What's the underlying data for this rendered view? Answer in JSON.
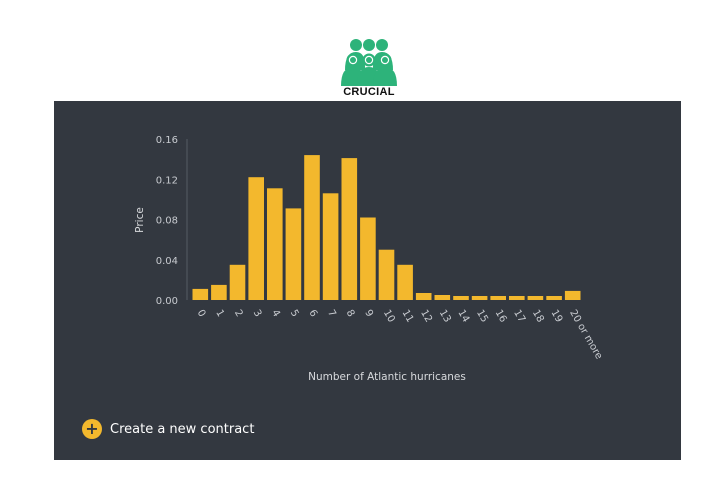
{
  "logo": {
    "text": "CRUCIAL",
    "icon": "people-group-icon",
    "color": "#2db37a"
  },
  "colors": {
    "panel_background": "#333840",
    "bar": "#f3b82d",
    "accent": "#f3b82d"
  },
  "chart_data": {
    "type": "bar",
    "title": "",
    "xlabel": "Number of Atlantic hurricanes",
    "ylabel": "Price",
    "ylim": [
      0,
      0.16
    ],
    "yticks": [
      "0.00",
      "0.04",
      "0.08",
      "0.12",
      "0.16"
    ],
    "ytick_values": [
      0,
      0.04,
      0.08,
      0.12,
      0.16
    ],
    "grid": false,
    "categories": [
      "0",
      "1",
      "2",
      "3",
      "4",
      "5",
      "6",
      "7",
      "8",
      "9",
      "10",
      "11",
      "12",
      "13",
      "14",
      "15",
      "16",
      "17",
      "18",
      "19",
      "20 or more"
    ],
    "values": [
      0.011,
      0.015,
      0.035,
      0.122,
      0.111,
      0.091,
      0.144,
      0.106,
      0.141,
      0.082,
      0.05,
      0.035,
      0.007,
      0.005,
      0.004,
      0.004,
      0.004,
      0.004,
      0.004,
      0.004,
      0.009
    ]
  },
  "actions": {
    "create_contract_label": "Create a new contract",
    "create_contract_icon": "plus-circle-icon"
  }
}
